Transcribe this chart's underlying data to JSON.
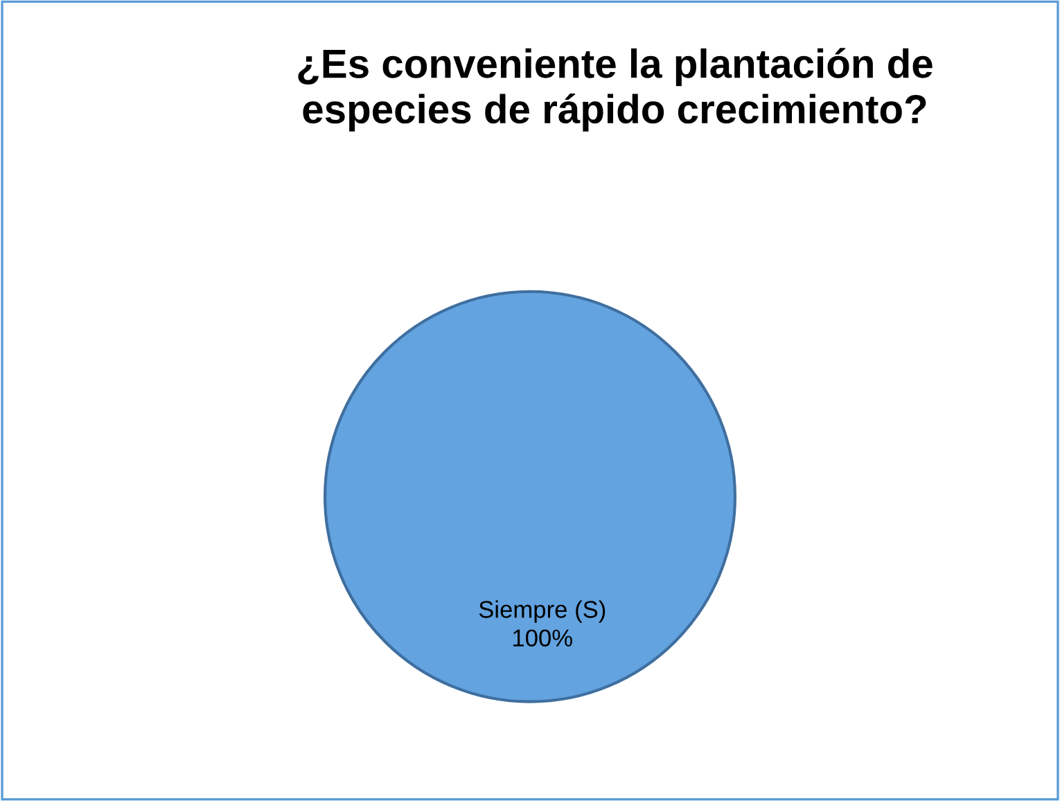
{
  "chart_data": {
    "type": "pie",
    "title": "¿Es conveniente la plantación de\nespecies de rápido crecimiento?",
    "categories": [
      "Siempre (S)"
    ],
    "values": [
      100
    ],
    "colors": [
      "#62a3e0"
    ],
    "value_labels": [
      "100%"
    ]
  }
}
